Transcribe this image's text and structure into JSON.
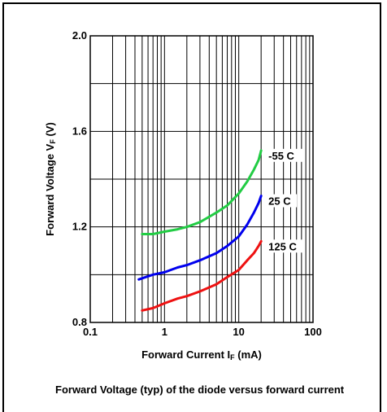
{
  "chart_data": {
    "type": "line",
    "title": "",
    "xlabel": "Forward Current I",
    "xlabel_sub": "F",
    "xlabel_unit": " (mA)",
    "ylabel": "Forward Voltage V",
    "ylabel_sub": "F",
    "ylabel_unit": " (V)",
    "x_scale": "log",
    "xlim": [
      0.1,
      100
    ],
    "ylim": [
      0.8,
      2.0
    ],
    "x_ticks": [
      {
        "value": 0.1,
        "label": "0.1"
      },
      {
        "value": 1,
        "label": "1"
      },
      {
        "value": 10,
        "label": "10"
      },
      {
        "value": 100,
        "label": "100"
      }
    ],
    "y_ticks": [
      {
        "value": 0.8,
        "label": "0.8"
      },
      {
        "value": 1.2,
        "label": "1.2"
      },
      {
        "value": 1.6,
        "label": "1.6"
      },
      {
        "value": 2.0,
        "label": "2.0"
      }
    ],
    "grid": true,
    "series": [
      {
        "name": "-55 C",
        "color": "#22cc44",
        "x": [
          0.5,
          0.7,
          1,
          1.5,
          2,
          3,
          5,
          7,
          10,
          13,
          16,
          18.5,
          20
        ],
        "y": [
          1.17,
          1.17,
          1.18,
          1.19,
          1.2,
          1.22,
          1.26,
          1.29,
          1.34,
          1.39,
          1.44,
          1.48,
          1.52
        ]
      },
      {
        "name": "25 C",
        "color": "#0000ee",
        "x": [
          0.45,
          0.7,
          1,
          1.5,
          2,
          3,
          5,
          7,
          10,
          13,
          16,
          18.5,
          20
        ],
        "y": [
          0.98,
          1.0,
          1.01,
          1.03,
          1.04,
          1.06,
          1.09,
          1.12,
          1.16,
          1.21,
          1.26,
          1.3,
          1.33
        ]
      },
      {
        "name": "125 C",
        "color": "#ee1111",
        "x": [
          0.5,
          0.7,
          1,
          1.5,
          2,
          3,
          5,
          7,
          10,
          13,
          16,
          18.5,
          20
        ],
        "y": [
          0.85,
          0.86,
          0.88,
          0.9,
          0.91,
          0.93,
          0.96,
          0.99,
          1.02,
          1.06,
          1.09,
          1.12,
          1.14
        ]
      }
    ]
  },
  "caption": {
    "text": "Forward Voltage (typ) of the diode versus forward current"
  }
}
